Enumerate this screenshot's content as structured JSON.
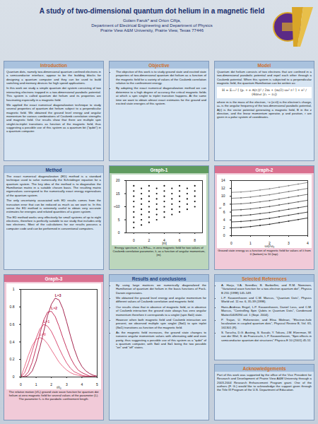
{
  "header": {
    "title": "A study of two-dimensional quantum dot helium in a magnetic field",
    "authors": "Golam Faruk* and Orion Ciftja,",
    "department": "Department of Electrical Engineering and Department of Physics",
    "university": "Prairie View A&M University, Prairie View, Texas 77446"
  },
  "sections": {
    "introduction": {
      "heading": "Introduction",
      "paragraphs": [
        "Quantum dots, namely two-dimensional quantum confined electrons in a semiconductor interface, appear to be the building blocks for designing a quantum computer and they can be used to build switching and memory devices for high speed applications.",
        "In this work we study a simple quantum dot system consisting of two interacting electrons trapped in a two-dimensional parabolic potential. This system is called quantum dot helium and its properties are fascinating especially in a magnetic field.",
        "We applied the exact numerical diagonalization technique to study several properties of quantum dot helium subject to a perpendicular magnetic field. We obtained the ground level energy and angular momentum for various combinations of Coulomb correlation strengths and magnetic field. Our results show that there are multiple spin singlet-to-triplet transitions as function of the magnetic field, thus suggesting a possible use of this system as a quantum bit (\"qubit\") in a quantum computer."
      ]
    },
    "objective": {
      "heading": "Objective",
      "bullets": [
        "The objective of this work is to study ground state and excited state properties of two-dimensional quantum dot helium as a function of the magnetic field for a variety of values of the Coulomb correlation relative to the confinement energy.",
        "By adopting the exact numerical diagonalization method we can determine to a high degree of accuracy the critical magnetic fields at which a spin singlet to triplet transition happens. At the same time we want to obtain almost exact estimates for the ground and excited state energies of this system."
      ]
    },
    "model": {
      "heading": "Model",
      "paragraphs": [
        "Quantum dot helium consists of two electrons that are confined in a two-dimensional parabolic potential and repel each other through a Coulomb potential. When this system is subjected to a perpendicular magnetic field, the quantum Hamiltonian can be written as:"
      ],
      "equation": "H = Σᵢ₌₁² [ (pᵢ + e A(rᵢ))² / 2m + (m/2) ω₀² rᵢ² ] + e² / (4πε₀ε |r₁ − r₂|)",
      "after": "where m is the mass of the electron, −e (e>0) is the electron's charge, ω₀ is the angular frequency of the two-dimensional parabolic potential, A(r) is the vector potential generating a magnetic field, B in the z direction, and the linear momentum operator, p and position, r are given in a polar system of coordinates."
    },
    "method": {
      "heading": "Method",
      "paragraphs": [
        "The exact numerical diagonalization (ED) method is a standard technique used to solve numerically the Schrödinger equation for a quantum system. The key idea of the method is to diagonalize the Hamiltonian matrix in a suitable chosen basis. The resulting matrix eigenvalues correspond to the numerically exact energy eigenvalues of the quantum system.",
        "The only uncertainty associated with ED results comes from the truncation error that can be reduced as much as we want to. In this sense the ED method is extremely useful to obtain very accurate estimates for energies and related quantities of a given system.",
        "The ED method works very effectively for small systems of up to eight electrons, therefore is perfectly suitable to our study that includes only two electrons. Most of the calculations for our results possess a computer code and can be performed in conventional computers."
      ]
    },
    "results": {
      "heading": "Results and conclusions",
      "bullets": [
        "By using large matrices we numerically diagonalized the Hamiltonian of quantum dot helium in the basis functions of Fock-Darwin eigenstates.",
        "We obtained the ground level energy and angular momentum for different values of Coulomb correlation and magnetic field.",
        "Our results show that in absence of magnetic field, or in absence of Coulomb interaction the ground state always has zero angular momentum therefore it corresponds to a singlet (spin S=0) state.",
        "However when both magnetic field and Coulomb interaction are present, we observed multiple spin singlet (S=0) to spin triplet (S=1) transitions as function of the magnetic field.",
        "As the magnetic field increases, the ground state changes to nonzero angular momentum values with alternating odd and even parity, thus suggesting a possible use of this system as a \"qubit\" of a quantum computer, with S=0 and S=1 being the two possible \"on\" and \"off\" states."
      ]
    },
    "references": {
      "heading": "Selected References",
      "bullets": [
        "A. Harju, V.A. Sverdlov, B. Barbiellini, and R.M. Nieminen, \"Variational wave function for a two-electron quantum dot\", Physica B 255 (1998) 145-149.",
        "L.P. Kouwenhoven and C.M. Marcus, \"Quantum Dots\", Physics World vol. 11 no. 6, 35-39 (1998).",
        "Hans-Andreas Engel, L.P. Kouwenhoven, Daniel Loss, and C.M. Marcus, \"Controlling Spin Qubits in Quantum Dots\", Condensed Matter/0409294 vol. 1 (Sept. 2004).",
        "P. Trojan, U. Hohenester, and Elisa Molinari, \"Electron-hole localization in coupled quantum dots\", Physical Review B, Vol. 65, 161301 (R).",
        "S. Tarucha, D.G. Austing, S. Sasaki, Y. Tokura, J.M. Elzerman, W. van der Wiel, S. de Franceschi, L.P. Kouwenhoven, \"Spin effects in semiconductor quantum dot structures\" Physica E 10 (2001) 45-51"
      ]
    },
    "acknowledgements": {
      "heading": "Acknowledgements",
      "paragraphs": [
        "Part of this work was supported by the office of the Vice President for Research and Development of Prairie View A&M University through a 2003-2004 Research Enhancement Program grant. One of the authors (F. G.) would like to acknowledge the support given through the Title III Program of the U.S. Department of Education."
      ]
    }
  },
  "chart_data": [
    {
      "type": "scatter",
      "title": "Graph-1",
      "caption": "Energy spectrum, ε = E/ħω₀, in zero magnetic field for two values of Coulomb correlation parameter, λ, as a function of angular momentum, |m|.",
      "x_label": "|m|",
      "y_label": "ε",
      "color": "#111111",
      "marker": "circle",
      "x": [
        0,
        0,
        0,
        0,
        0,
        0,
        0,
        0,
        0,
        1,
        1,
        1,
        1,
        1,
        1,
        1,
        1,
        2,
        2,
        2,
        2,
        2,
        2,
        2,
        2,
        3,
        3,
        3,
        3,
        3,
        3,
        3,
        4,
        4,
        4,
        4,
        4,
        4,
        4,
        5,
        5,
        5,
        5,
        5,
        5,
        6,
        6,
        6,
        6,
        6,
        6,
        7,
        7,
        7,
        7,
        7,
        8,
        8,
        8,
        8,
        8
      ],
      "values": [
        2,
        4,
        6,
        8,
        10,
        12,
        14,
        16,
        18,
        3,
        5,
        7,
        9,
        11,
        13,
        15,
        17,
        4,
        6,
        8,
        10,
        12,
        14,
        16,
        18,
        5,
        7,
        9,
        11,
        13,
        15,
        17,
        6,
        8,
        10,
        12,
        14,
        16,
        18,
        7,
        9,
        11,
        13,
        15,
        17,
        8,
        10,
        12,
        14,
        16,
        18,
        9,
        11,
        13,
        15,
        17,
        10,
        12,
        14,
        16,
        18
      ],
      "xlim": [
        -1,
        9
      ],
      "xticks": [
        0,
        2,
        4,
        6,
        8
      ],
      "ylim": [
        0,
        20
      ],
      "yticks": [
        0,
        5,
        10,
        15,
        20
      ]
    },
    {
      "type": "line",
      "title": "Graph-2",
      "caption": "Ground state energy as a function of magnetic field for values of λ from 0 (bottom) to 10 (top).",
      "x_label": "ωc/ω₀",
      "y_label": "ε",
      "marker": "circle",
      "x": [
        0,
        0.5,
        1,
        1.5,
        2,
        2.5,
        3,
        3.5,
        4
      ],
      "series": [
        {
          "color": "#222222",
          "values": [
            2.0,
            2.1,
            2.3,
            2.6,
            2.9,
            3.3,
            3.7,
            4.1,
            4.5
          ]
        },
        {
          "color": "#333333",
          "values": [
            3.5,
            3.6,
            3.8,
            4.1,
            4.4,
            4.8,
            5.2,
            5.6,
            6.0
          ]
        },
        {
          "color": "#444444",
          "values": [
            5.0,
            5.1,
            5.3,
            5.6,
            5.9,
            6.3,
            6.7,
            7.1,
            7.5
          ]
        },
        {
          "color": "#555555",
          "values": [
            6.5,
            6.6,
            6.8,
            7.1,
            7.4,
            7.8,
            8.2,
            8.6,
            9.0
          ]
        },
        {
          "color": "#666666",
          "values": [
            8.0,
            8.1,
            8.3,
            8.6,
            8.9,
            9.3,
            9.7,
            10.1,
            10.5
          ]
        },
        {
          "color": "#777777",
          "values": [
            9.5,
            9.6,
            9.8,
            10.1,
            10.4,
            10.8,
            11.2,
            11.6,
            12.0
          ]
        },
        {
          "color": "#888888",
          "values": [
            11.0,
            11.1,
            11.3,
            11.6,
            11.9,
            12.3,
            12.7,
            13.1,
            13.5
          ]
        }
      ],
      "xlim": [
        0,
        4
      ],
      "xticks": [
        0,
        1,
        2,
        3,
        4
      ],
      "ylim": [
        0,
        14
      ],
      "yticks": [
        0,
        2,
        4,
        6,
        8,
        10,
        12,
        14
      ]
    },
    {
      "type": "line",
      "title": "Graph-3",
      "caption": "The relative motion (r/ℓ₀) ground state wave function for quantum dot helium at zero magnetic field for several values of the parameter (L). The parameter ℓ₀ is the parabolic confinement length.",
      "x_label": "r/ℓ₀",
      "x": [
        0,
        0.25,
        0.5,
        0.75,
        1,
        1.25,
        1.5,
        1.75,
        2,
        2.25,
        2.5,
        2.75,
        3,
        3.25,
        3.5,
        3.75,
        4,
        4.25,
        4.5,
        4.75,
        5
      ],
      "series": [
        {
          "name": "L=0",
          "color": "#e8607e",
          "values": [
            0,
            0.12,
            0.25,
            0.36,
            0.43,
            0.45,
            0.43,
            0.38,
            0.31,
            0.24,
            0.17,
            0.12,
            0.08,
            0.05,
            0.03,
            0.02,
            0.01,
            0.01,
            0,
            0,
            0
          ]
        },
        {
          "name": "L=1",
          "color": "#d63c66",
          "values": [
            0,
            0.05,
            0.16,
            0.3,
            0.44,
            0.55,
            0.6,
            0.58,
            0.52,
            0.43,
            0.33,
            0.24,
            0.16,
            0.1,
            0.06,
            0.04,
            0.02,
            0.01,
            0.01,
            0,
            0
          ]
        },
        {
          "name": "L=2",
          "color": "#c0204e",
          "values": [
            0,
            0.01,
            0.06,
            0.17,
            0.33,
            0.5,
            0.65,
            0.74,
            0.75,
            0.69,
            0.58,
            0.45,
            0.33,
            0.22,
            0.14,
            0.08,
            0.05,
            0.03,
            0.01,
            0.01,
            0
          ]
        },
        {
          "name": "L=3",
          "color": "#9a0f3c",
          "values": [
            0,
            0,
            0.02,
            0.07,
            0.18,
            0.34,
            0.52,
            0.7,
            0.83,
            0.9,
            0.88,
            0.78,
            0.63,
            0.47,
            0.32,
            0.2,
            0.12,
            0.07,
            0.04,
            0.02,
            0.01
          ]
        }
      ],
      "xlim": [
        0,
        5
      ],
      "xticks": [
        0,
        1,
        2,
        3,
        4,
        5
      ],
      "ylim": [
        0,
        1
      ],
      "yticks": [
        0,
        0.2,
        0.4,
        0.6,
        0.8,
        1
      ]
    }
  ]
}
